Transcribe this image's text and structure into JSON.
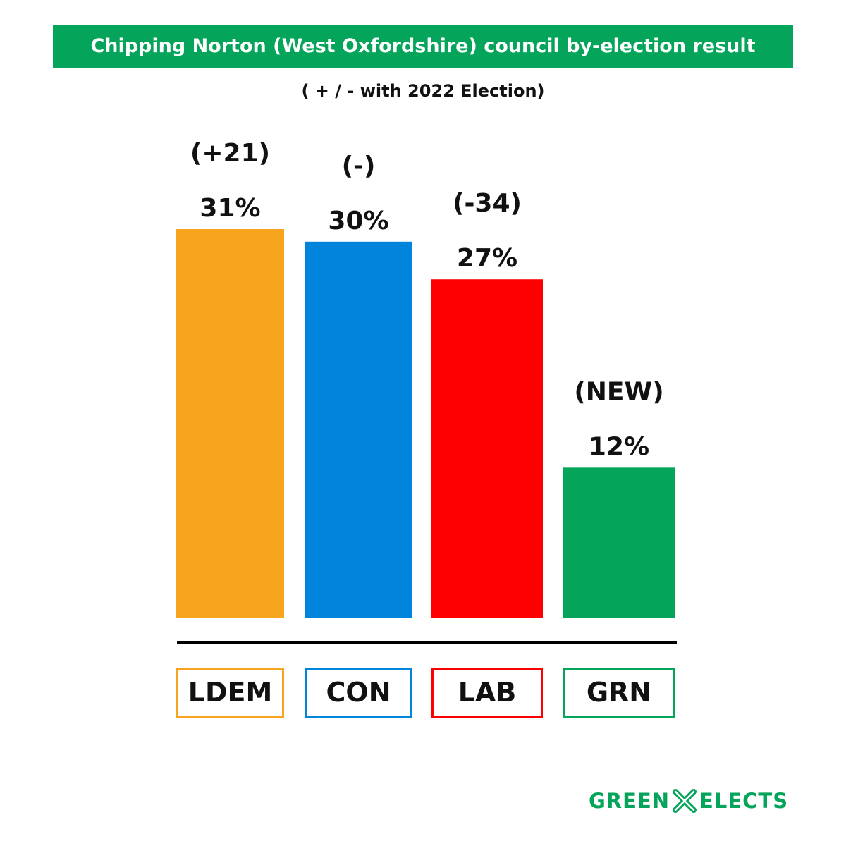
{
  "header": {
    "title": "Chipping Norton (West Oxfordshire) council by-election result",
    "subtitle": "( + / - with 2022 Election)",
    "accent_color": "#04a55a"
  },
  "chart_data": {
    "type": "bar",
    "title": "Chipping Norton (West Oxfordshire) council by-election result",
    "subtitle": "( + / - with 2022 Election)",
    "categories": [
      "LDEM",
      "CON",
      "LAB",
      "GRN"
    ],
    "values": [
      31,
      30,
      27,
      12
    ],
    "value_labels": [
      "31%",
      "30%",
      "27%",
      "12%"
    ],
    "change_labels": [
      "(+21)",
      "(-)",
      "(-34)",
      "(NEW)"
    ],
    "colors": [
      "#f7a51e",
      "#0184db",
      "#ff0000",
      "#04a55a"
    ],
    "unit": "%",
    "ylim": [
      0,
      31
    ],
    "grid": false,
    "xlabel": "",
    "ylabel": ""
  },
  "brand": {
    "left": "GREEN",
    "right": "ELECTS",
    "icon": "x-cross-icon"
  }
}
